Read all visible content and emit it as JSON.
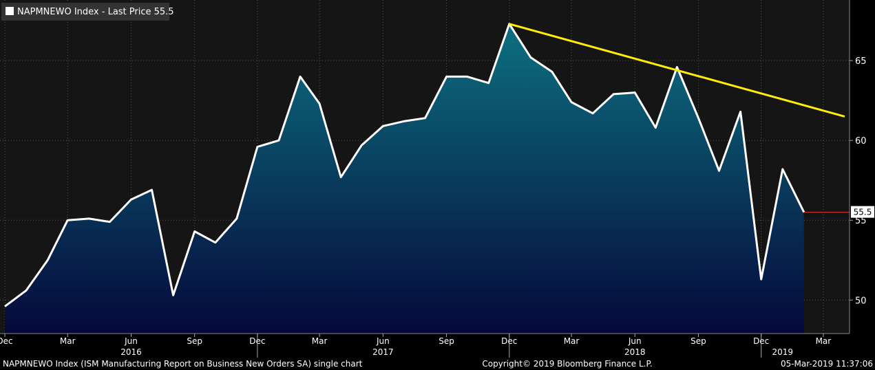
{
  "legend": {
    "label": "NAPMNEWO Index - Last Price 55.5",
    "swatch_color": "#ffffff"
  },
  "footer": {
    "left": "NAPMNEWO Index (ISM Manufacturing Report on Business New Orders SA) single chart",
    "center": "Copyright© 2019 Bloomberg Finance L.P.",
    "right": "05-Mar-2019 11:37:06"
  },
  "colors": {
    "background": "#000000",
    "plot_background": "#151515",
    "line": "#ffffff",
    "area_top": "#0d7080",
    "area_bottom": "#05083a",
    "trendline": "#ffee00",
    "last_price": "#e0402a",
    "grid": "#555555",
    "text": "#ffffff"
  },
  "chart_data": {
    "type": "area",
    "series": [
      {
        "name": "NAPMNEWO Index",
        "x": [
          "2015-12",
          "2016-01",
          "2016-02",
          "2016-03",
          "2016-04",
          "2016-05",
          "2016-06",
          "2016-07",
          "2016-08",
          "2016-09",
          "2016-10",
          "2016-11",
          "2016-12",
          "2017-01",
          "2017-02",
          "2017-03",
          "2017-04",
          "2017-05",
          "2017-06",
          "2017-07",
          "2017-08",
          "2017-09",
          "2017-10",
          "2017-11",
          "2017-12",
          "2018-01",
          "2018-02",
          "2018-03",
          "2018-04",
          "2018-05",
          "2018-06",
          "2018-07",
          "2018-08",
          "2018-09",
          "2018-10",
          "2018-11",
          "2018-12",
          "2019-01",
          "2019-02"
        ],
        "values": [
          49.6,
          50.6,
          52.5,
          55.0,
          55.1,
          54.9,
          56.3,
          56.9,
          50.3,
          54.3,
          53.6,
          55.1,
          59.6,
          60.0,
          64.0,
          62.3,
          57.7,
          59.7,
          60.9,
          61.2,
          61.4,
          64.0,
          64.0,
          63.6,
          67.3,
          65.2,
          64.3,
          62.4,
          61.7,
          62.9,
          63.0,
          60.8,
          64.6,
          61.4,
          58.1,
          61.8,
          51.3,
          58.2,
          55.5
        ]
      }
    ],
    "trendline": {
      "from": {
        "x": "2017-12",
        "y": 67.3
      },
      "to": {
        "x": "2019-04",
        "y": 61.5
      }
    },
    "last_price": {
      "value": 55.5,
      "label": "55.5"
    },
    "y_axis": {
      "ticks": [
        50,
        55,
        60,
        65
      ],
      "labels": [
        "50",
        "55",
        "60",
        "65"
      ],
      "range": [
        47.9,
        68.8
      ],
      "position": "right"
    },
    "x_axis": {
      "range": [
        "2015-11-24",
        "2019-04-08"
      ],
      "month_ticks": [
        {
          "x": "2015-12",
          "label": "Dec"
        },
        {
          "x": "2016-03",
          "label": "Mar"
        },
        {
          "x": "2016-06",
          "label": "Jun"
        },
        {
          "x": "2016-09",
          "label": "Sep"
        },
        {
          "x": "2016-12",
          "label": "Dec"
        },
        {
          "x": "2017-03",
          "label": "Mar"
        },
        {
          "x": "2017-06",
          "label": "Jun"
        },
        {
          "x": "2017-09",
          "label": "Sep"
        },
        {
          "x": "2017-12",
          "label": "Dec"
        },
        {
          "x": "2018-03",
          "label": "Mar"
        },
        {
          "x": "2018-06",
          "label": "Jun"
        },
        {
          "x": "2018-09",
          "label": "Sep"
        },
        {
          "x": "2018-12",
          "label": "Dec"
        },
        {
          "x": "2019-03",
          "label": "Mar"
        }
      ],
      "year_labels": [
        {
          "x": "2016-06",
          "label": "2016"
        },
        {
          "x": "2017-06",
          "label": "2017"
        },
        {
          "x": "2018-06",
          "label": "2018"
        },
        {
          "x": "2019-01",
          "label": "2019"
        }
      ],
      "year_dividers": [
        "2016-12",
        "2017-12",
        "2018-12"
      ]
    },
    "grid": true
  }
}
